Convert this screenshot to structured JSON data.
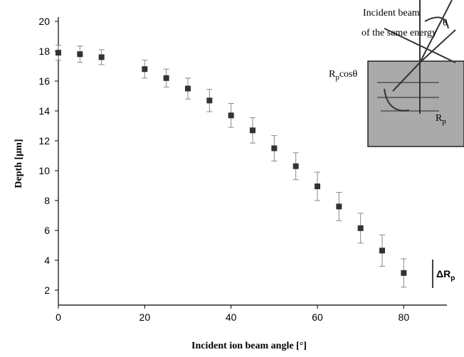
{
  "chart_data": {
    "type": "scatter",
    "x_label": "Incident ion beam angle [°]",
    "y_label": "Depth [µm]",
    "xlim": [
      0,
      90
    ],
    "ylim": [
      1,
      20
    ],
    "xticks": [
      0,
      20,
      40,
      60,
      80
    ],
    "yticks": [
      2,
      4,
      6,
      8,
      10,
      12,
      14,
      16,
      18,
      20
    ],
    "x": [
      0,
      5,
      10,
      20,
      25,
      30,
      35,
      40,
      45,
      50,
      55,
      60,
      65,
      70,
      75,
      80
    ],
    "values": [
      17.9,
      17.8,
      17.6,
      16.8,
      16.2,
      15.5,
      14.7,
      13.7,
      12.7,
      11.5,
      10.3,
      8.95,
      7.6,
      6.15,
      4.65,
      3.15
    ],
    "errors": [
      0.5,
      0.55,
      0.5,
      0.6,
      0.6,
      0.7,
      0.75,
      0.8,
      0.85,
      0.85,
      0.9,
      0.95,
      0.95,
      1.0,
      1.05,
      0.95
    ],
    "color": "#333333",
    "error_color": "#888888",
    "inset": {
      "line1": "Incident beam",
      "line2": "of the same energy",
      "theta": "θ",
      "proj_base": "R",
      "proj_sub": "p",
      "proj_rest": "cosθ",
      "range_base": "R",
      "range_sub": "p"
    },
    "delta_label": {
      "base": "ΔR",
      "sub": "p"
    }
  }
}
